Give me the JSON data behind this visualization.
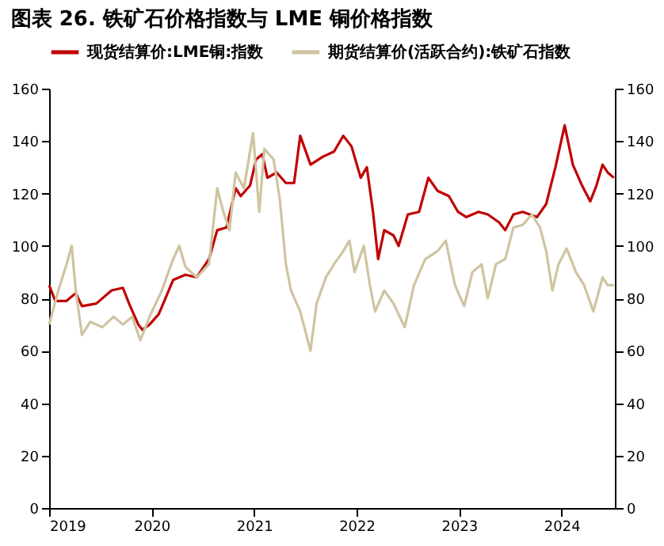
{
  "chart_data": {
    "type": "line",
    "title": "图表 26. 铁矿石价格指数与 LME 铜价格指数",
    "xlim": [
      2019,
      2024.52
    ],
    "xticks": [
      2019,
      2020,
      2021,
      2022,
      2023,
      2024
    ],
    "ylim": [
      0,
      160
    ],
    "yticks": [
      0,
      20,
      40,
      60,
      80,
      100,
      120,
      140,
      160
    ],
    "y2lim": [
      0,
      160
    ],
    "y2ticks": [
      0,
      20,
      40,
      60,
      80,
      100,
      120,
      140,
      160
    ],
    "legend": "top",
    "grid": false,
    "marker": "none",
    "line_style": "solid",
    "series": [
      {
        "name": "现货结算价:LME铜:指数",
        "color": "#c00000",
        "x": [
          2019.0,
          2019.06,
          2019.17,
          2019.26,
          2019.32,
          2019.46,
          2019.61,
          2019.72,
          2019.78,
          2019.87,
          2019.91,
          2019.98,
          2020.07,
          2020.21,
          2020.33,
          2020.44,
          2020.56,
          2020.64,
          2020.73,
          2020.82,
          2020.87,
          2020.96,
          2021.02,
          2021.08,
          2021.13,
          2021.22,
          2021.31,
          2021.39,
          2021.45,
          2021.55,
          2021.67,
          2021.78,
          2021.87,
          2021.95,
          2022.04,
          2022.1,
          2022.16,
          2022.21,
          2022.27,
          2022.36,
          2022.41,
          2022.5,
          2022.61,
          2022.7,
          2022.79,
          2022.9,
          2022.99,
          2023.07,
          2023.19,
          2023.28,
          2023.39,
          2023.45,
          2023.53,
          2023.62,
          2023.76,
          2023.85,
          2023.94,
          2024.03,
          2024.11,
          2024.2,
          2024.28,
          2024.34,
          2024.4,
          2024.45,
          2024.51
        ],
        "values": [
          85,
          79,
          79,
          82,
          77,
          78,
          83,
          84,
          78,
          70,
          68,
          70,
          74,
          87,
          89,
          88,
          95,
          106,
          107,
          122,
          119,
          123,
          133,
          135,
          126,
          128,
          124,
          124,
          142,
          131,
          134,
          136,
          142,
          138,
          126,
          130,
          113,
          95,
          106,
          104,
          100,
          112,
          113,
          126,
          121,
          119,
          113,
          111,
          113,
          112,
          109,
          106,
          112,
          113,
          111,
          116,
          130,
          146,
          131,
          123,
          117,
          123,
          131,
          128,
          126
        ]
      },
      {
        "name": "期货结算价(活跃合约):铁矿石指数",
        "color": "#cfc4a0",
        "axis": "y2",
        "x": [
          2019.0,
          2019.09,
          2019.17,
          2019.22,
          2019.26,
          2019.32,
          2019.4,
          2019.52,
          2019.63,
          2019.72,
          2019.81,
          2019.89,
          2019.98,
          2020.1,
          2020.21,
          2020.27,
          2020.33,
          2020.44,
          2020.56,
          2020.64,
          2020.7,
          2020.76,
          2020.82,
          2020.9,
          2020.99,
          2021.05,
          2021.1,
          2021.19,
          2021.25,
          2021.31,
          2021.36,
          2021.45,
          2021.55,
          2021.61,
          2021.7,
          2021.78,
          2021.87,
          2021.93,
          2021.98,
          2022.07,
          2022.13,
          2022.18,
          2022.27,
          2022.36,
          2022.47,
          2022.56,
          2022.67,
          2022.79,
          2022.87,
          2022.96,
          2023.05,
          2023.13,
          2023.22,
          2023.28,
          2023.36,
          2023.45,
          2023.53,
          2023.62,
          2023.71,
          2023.79,
          2023.85,
          2023.91,
          2023.97,
          2024.05,
          2024.14,
          2024.22,
          2024.31,
          2024.4,
          2024.45,
          2024.51
        ],
        "values": [
          70,
          83,
          93,
          100,
          83,
          66,
          71,
          69,
          73,
          70,
          73,
          64,
          73,
          83,
          95,
          100,
          92,
          88,
          93,
          122,
          113,
          106,
          128,
          122,
          143,
          113,
          137,
          133,
          118,
          93,
          83,
          75,
          60,
          78,
          88,
          93,
          98,
          102,
          90,
          100,
          85,
          75,
          83,
          78,
          69,
          85,
          95,
          98,
          102,
          85,
          77,
          90,
          93,
          80,
          93,
          95,
          107,
          108,
          112,
          107,
          98,
          83,
          93,
          99,
          90,
          85,
          75,
          88,
          85,
          85
        ]
      }
    ]
  }
}
